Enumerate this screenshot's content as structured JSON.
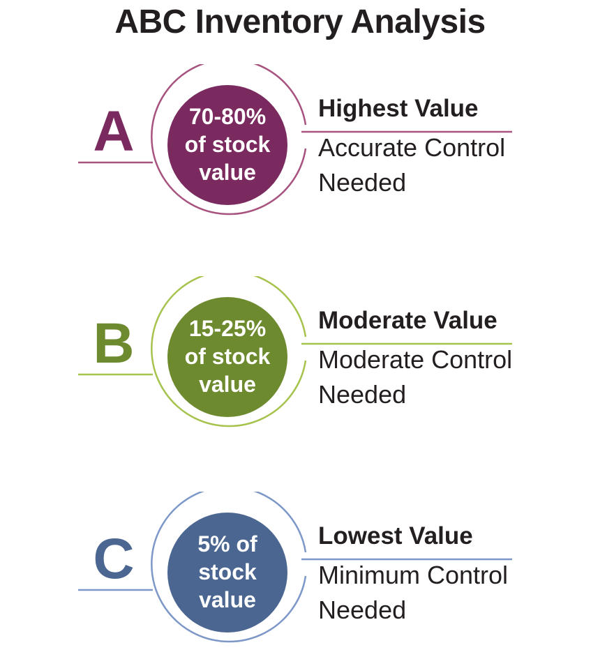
{
  "title": "ABC Inventory Analysis",
  "tiers": [
    {
      "letter": "A",
      "circle_lines": [
        "70-80%",
        "of stock",
        "value"
      ],
      "heading": "Highest Value",
      "desc_lines": [
        "Accurate Control",
        "Needed"
      ],
      "color": "#7a2a5e"
    },
    {
      "letter": "B",
      "circle_lines": [
        "15-25%",
        "of stock",
        "value"
      ],
      "heading": "Moderate Value",
      "desc_lines": [
        "Moderate Control",
        "Needed"
      ],
      "color": "#6e8a2f"
    },
    {
      "letter": "C",
      "circle_lines": [
        "5% of",
        "stock",
        "value"
      ],
      "heading": "Lowest Value",
      "desc_lines": [
        "Minimum Control",
        "Needed"
      ],
      "color": "#4a6691"
    }
  ],
  "colors": {
    "a_light": "#a8527f",
    "b_light": "#a6c34e",
    "c_light": "#7d98c8",
    "text": "#231f20"
  }
}
